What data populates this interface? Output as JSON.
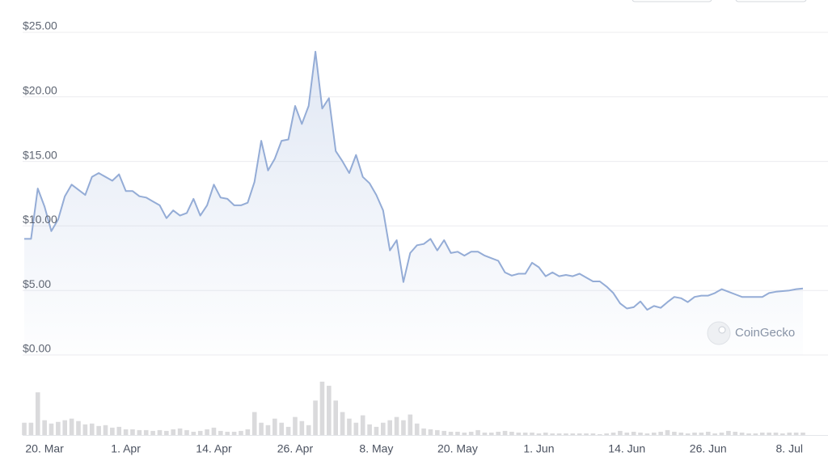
{
  "chart_data": {
    "type": "line",
    "categories": [
      null,
      null,
      null,
      "20. Mar",
      null,
      null,
      null,
      null,
      null,
      null,
      null,
      null,
      null,
      null,
      null,
      "1. Apr",
      null,
      null,
      null,
      null,
      null,
      null,
      null,
      null,
      null,
      null,
      null,
      null,
      "14. Apr",
      null,
      null,
      null,
      null,
      null,
      null,
      null,
      null,
      null,
      null,
      null,
      "26. Apr",
      null,
      null,
      null,
      null,
      null,
      null,
      null,
      null,
      null,
      null,
      null,
      "8. May",
      null,
      null,
      null,
      null,
      null,
      null,
      null,
      null,
      null,
      null,
      null,
      "20. May",
      null,
      null,
      null,
      null,
      null,
      null,
      null,
      null,
      null,
      null,
      null,
      "1. Jun",
      null,
      null,
      null,
      null,
      null,
      null,
      null,
      null,
      null,
      null,
      null,
      null,
      "14. Jun",
      null,
      null,
      null,
      null,
      null,
      null,
      null,
      null,
      null,
      null,
      null,
      "26. Jun",
      null,
      null,
      null,
      null,
      null,
      null,
      null,
      null,
      null,
      null,
      null,
      "8. Jul",
      null,
      null
    ],
    "series": [
      {
        "color": "#94acd6",
        "values": [
          9.0,
          9.0,
          12.9,
          11.5,
          9.6,
          10.5,
          12.3,
          13.2,
          12.8,
          12.4,
          13.8,
          14.1,
          13.8,
          13.5,
          14.0,
          12.7,
          12.7,
          12.3,
          12.2,
          11.9,
          11.6,
          10.6,
          11.2,
          10.8,
          11.0,
          12.1,
          10.8,
          11.6,
          13.2,
          12.2,
          12.1,
          11.6,
          11.6,
          11.8,
          13.4,
          16.6,
          14.3,
          15.2,
          16.6,
          16.7,
          19.3,
          17.9,
          19.3,
          23.5,
          19.1,
          19.9,
          15.8,
          15.0,
          14.1,
          15.5,
          13.8,
          13.3,
          12.4,
          11.2,
          8.1,
          8.9,
          5.65,
          7.9,
          8.5,
          8.6,
          9.0,
          8.1,
          8.9,
          7.9,
          8.0,
          7.7,
          8.0,
          8.0,
          7.7,
          7.5,
          7.3,
          6.4,
          6.15,
          6.3,
          6.3,
          7.15,
          6.8,
          6.1,
          6.4,
          6.1,
          6.2,
          6.1,
          6.3,
          6.0,
          5.7,
          5.7,
          5.3,
          4.8,
          4.0,
          3.6,
          3.7,
          4.15,
          3.5,
          3.8,
          3.65,
          4.1,
          4.5,
          4.4,
          4.1,
          4.5,
          4.6,
          4.6,
          4.8,
          5.1,
          4.9,
          4.7,
          4.5,
          4.5,
          4.5,
          4.5,
          4.8,
          4.9,
          4.95,
          5.0,
          5.1,
          5.15
        ]
      }
    ],
    "volume": {
      "color": "#dadadc",
      "values": [
        15,
        15,
        52,
        18,
        14,
        16,
        18,
        20,
        17,
        13,
        14,
        11,
        12,
        9,
        10,
        7,
        7,
        6,
        6,
        5,
        6,
        5,
        7,
        8,
        6,
        4,
        5,
        7,
        9,
        5,
        4,
        4,
        5,
        7,
        28,
        15,
        12,
        20,
        15,
        10,
        22,
        17,
        12,
        42,
        65,
        60,
        42,
        28,
        20,
        15,
        24,
        13,
        10,
        15,
        18,
        22,
        18,
        25,
        14,
        8,
        7,
        6,
        5,
        4,
        4,
        3,
        4,
        6,
        3,
        3,
        4,
        5,
        4,
        3,
        3,
        3,
        2,
        3,
        2,
        2,
        2,
        2,
        2,
        2,
        2,
        1,
        2,
        3,
        5,
        3,
        4,
        3,
        2,
        3,
        4,
        6,
        4,
        3,
        2,
        3,
        3,
        4,
        2,
        3,
        5,
        4,
        3,
        2,
        2,
        3,
        3,
        3,
        2,
        3,
        3,
        3
      ]
    },
    "ylim": [
      0,
      25
    ],
    "yticks": [
      {
        "value": 0,
        "label": "$0.00"
      },
      {
        "value": 5,
        "label": "$5.00"
      },
      {
        "value": 10,
        "label": "$10.00"
      },
      {
        "value": 15,
        "label": "$15.00"
      },
      {
        "value": 20,
        "label": "$20.00"
      },
      {
        "value": 25,
        "label": "$25.00"
      }
    ],
    "grid": true,
    "watermark": "CoinGecko"
  }
}
